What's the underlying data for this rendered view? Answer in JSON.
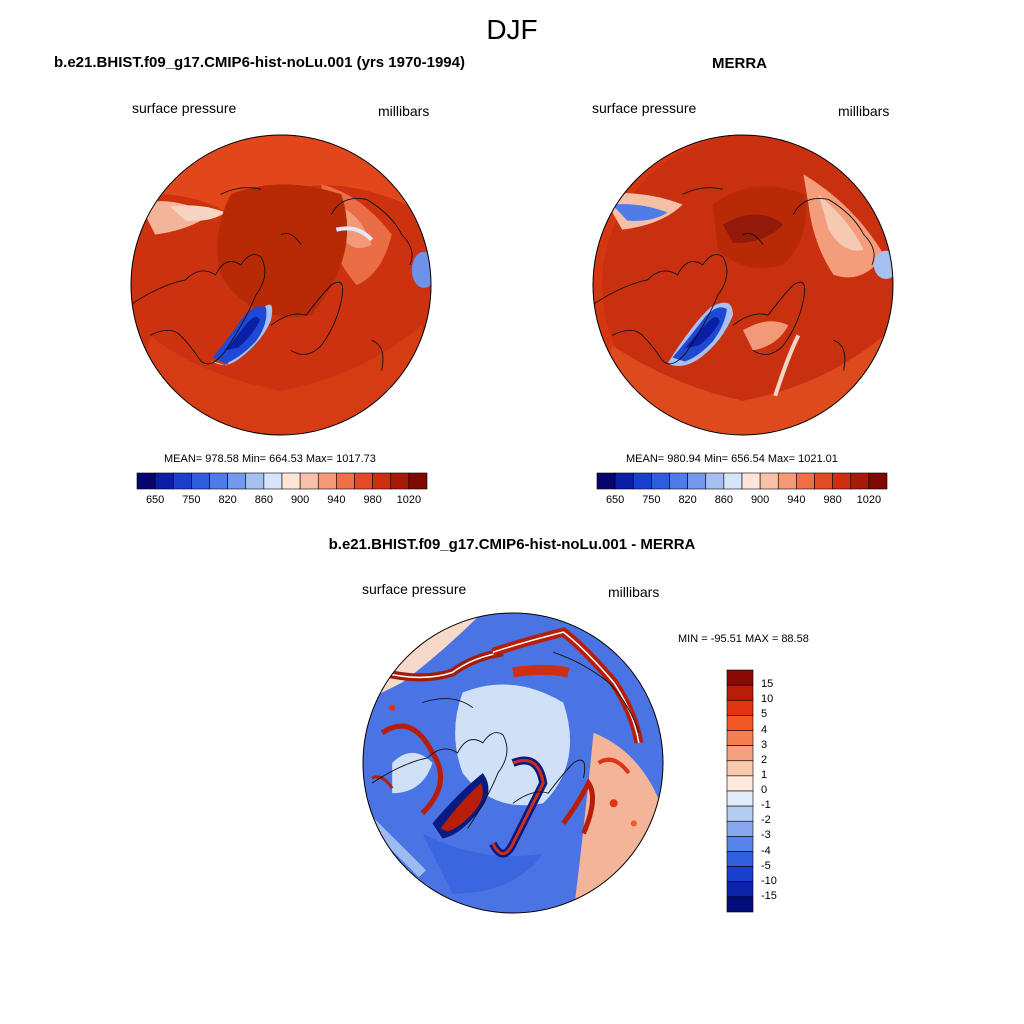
{
  "figure": {
    "title": "DJF",
    "panels": [
      {
        "id": "model",
        "title": "b.e21.BHIST.f09_g17.CMIP6-hist-noLu.001 (yrs 1970-1994)",
        "left_label": "surface pressure",
        "right_label": "millibars",
        "stats": "MEAN= 978.58  Min= 664.53  Max= 1017.73"
      },
      {
        "id": "obs",
        "title": "MERRA",
        "left_label": "surface pressure",
        "right_label": "millibars",
        "stats": "MEAN= 980.94  Min= 656.54  Max= 1021.01"
      },
      {
        "id": "diff",
        "title": "b.e21.BHIST.f09_g17.CMIP6-hist-noLu.001 - MERRA",
        "left_label": "surface pressure",
        "right_label": "millibars",
        "stats": "MIN = -95.51 MAX =  88.58"
      }
    ]
  },
  "colorbars": {
    "abs": {
      "colors": [
        "#08066e",
        "#0b1ea6",
        "#1a3fd0",
        "#2e5de0",
        "#4e7ce8",
        "#7399ee",
        "#a6c0f2",
        "#d6e5fa",
        "#fde6d8",
        "#f9c2a6",
        "#f59a76",
        "#ee6f48",
        "#e34a26",
        "#cf2e12",
        "#aa1a08",
        "#7e0a02"
      ],
      "labels": [
        "650",
        "750",
        "820",
        "860",
        "900",
        "940",
        "980",
        "1020"
      ]
    },
    "diff": {
      "colors": [
        "#8a0a05",
        "#b81d08",
        "#e0330f",
        "#f25726",
        "#f47f52",
        "#f6a27e",
        "#f9c9ac",
        "#fdeadc",
        "#e2ecf9",
        "#b4cbf2",
        "#86a8ee",
        "#5883e8",
        "#3160df",
        "#1740cf",
        "#0a23a8",
        "#020d7a"
      ],
      "labels": [
        "15",
        "10",
        "5",
        "4",
        "3",
        "2",
        "1",
        "0",
        "-1",
        "-2",
        "-3",
        "-4",
        "-5",
        "-10",
        "-15"
      ]
    }
  },
  "colors": {
    "land_model": "#c52a0a",
    "land_obs": "#c22908",
    "ocean_high": "#d63a12",
    "greenland": "#1f49d4",
    "diff_base": "#3a66e0",
    "diff_light": "#cfe0f7"
  }
}
